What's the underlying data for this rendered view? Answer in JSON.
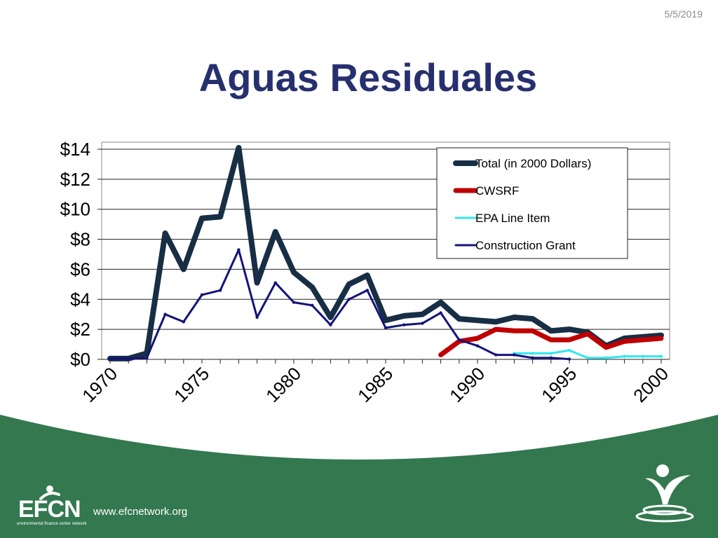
{
  "slide": {
    "date": "5/5/2019",
    "title": "Aguas Residuales",
    "footer_url": "www.efcnetwork.org",
    "logo_text": "EFCN",
    "logo_subtitle": "environmental finance center network",
    "colors": {
      "title": "#27306e",
      "footer_green": "#33784f"
    }
  },
  "chart_data": {
    "type": "line",
    "x": [
      1970,
      1971,
      1972,
      1973,
      1974,
      1975,
      1976,
      1977,
      1978,
      1979,
      1980,
      1981,
      1982,
      1983,
      1984,
      1985,
      1986,
      1987,
      1988,
      1989,
      1990,
      1991,
      1992,
      1993,
      1994,
      1995,
      1996,
      1997,
      1998,
      1999,
      2000
    ],
    "ylim": [
      0,
      14
    ],
    "y_ticks": [
      "$0",
      "$2",
      "$4",
      "$6",
      "$8",
      "$10",
      "$12",
      "$14"
    ],
    "x_ticks": [
      "1970",
      "1975",
      "1980",
      "1985",
      "1990",
      "1995",
      "2000"
    ],
    "grid": true,
    "legend_position": "top-right",
    "series": [
      {
        "name": "Total (in 2000 Dollars)",
        "color": "#172e45",
        "width": 8,
        "values": [
          0.05,
          0.05,
          0.4,
          8.4,
          6.0,
          9.4,
          9.5,
          14.1,
          5.1,
          8.5,
          5.8,
          4.8,
          2.8,
          5.0,
          5.6,
          2.6,
          2.9,
          3.0,
          3.8,
          2.7,
          2.6,
          2.5,
          2.8,
          2.7,
          1.9,
          2.0,
          1.8,
          0.9,
          1.4,
          1.5,
          1.6
        ]
      },
      {
        "name": "CWSRF",
        "color": "#c00000",
        "width": 7,
        "values": [
          null,
          null,
          null,
          null,
          null,
          null,
          null,
          null,
          null,
          null,
          null,
          null,
          null,
          null,
          null,
          null,
          null,
          null,
          0.3,
          1.2,
          1.4,
          2.0,
          1.9,
          1.9,
          1.3,
          1.3,
          1.7,
          0.8,
          1.2,
          1.3,
          1.4
        ]
      },
      {
        "name": "EPA Line Item",
        "color": "#33e6ee",
        "width": 3,
        "values": [
          null,
          null,
          null,
          null,
          null,
          null,
          null,
          null,
          null,
          null,
          null,
          null,
          null,
          null,
          null,
          null,
          null,
          null,
          null,
          null,
          null,
          null,
          0.4,
          0.4,
          0.4,
          0.6,
          0.1,
          0.1,
          0.2,
          0.2,
          0.2
        ]
      },
      {
        "name": "Construction Grant",
        "color": "#13137a",
        "width": 3,
        "values": [
          0.05,
          0.05,
          0.1,
          3.0,
          2.5,
          4.3,
          4.6,
          7.3,
          2.8,
          5.1,
          3.8,
          3.6,
          2.3,
          4.0,
          4.6,
          2.1,
          2.3,
          2.4,
          3.1,
          1.3,
          0.9,
          0.3,
          0.3,
          0.1,
          0.1,
          0.02,
          null,
          null,
          null,
          null,
          null
        ]
      }
    ]
  }
}
